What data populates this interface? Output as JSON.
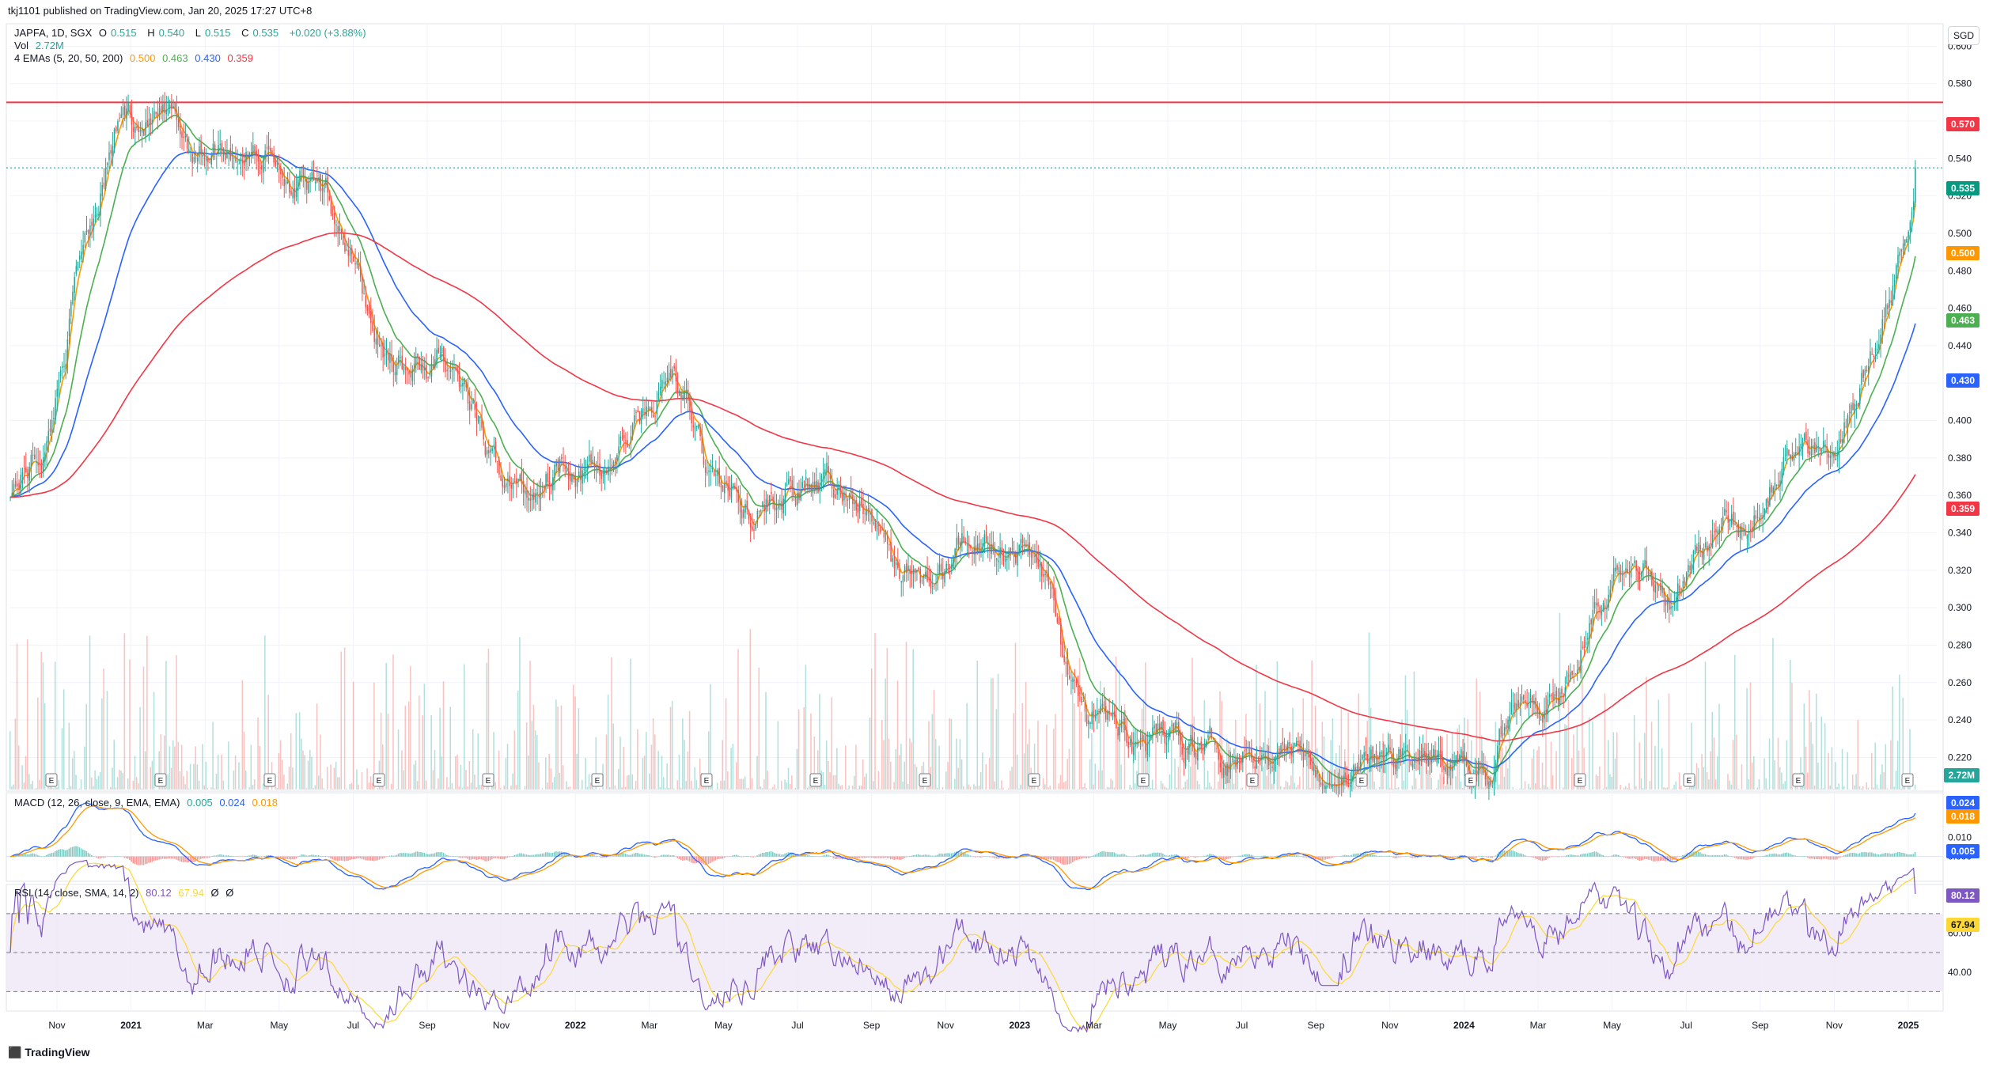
{
  "header": {
    "publisher_line": "tkj1101 published on TradingView.com, Jan 20, 2025 17:27 UTC+8"
  },
  "legend": {
    "symbol": "JAPFA, 1D, SGX",
    "ohlc": [
      {
        "label": "O",
        "value": "0.515"
      },
      {
        "label": "H",
        "value": "0.540"
      },
      {
        "label": "L",
        "value": "0.515"
      },
      {
        "label": "C",
        "value": "0.535"
      }
    ],
    "change": "+0.020 (+3.88%)",
    "vol_label": "Vol",
    "vol_value": "2.72M",
    "ema_label": "4 EMAs (5, 20, 50, 200)",
    "ema_values": [
      "0.500",
      "0.463",
      "0.430",
      "0.359"
    ],
    "macd_label": "MACD (12, 26, close, 9, EMA, EMA)",
    "macd_values": [
      "0.005",
      "0.024",
      "0.018"
    ],
    "rsi_label": "RSI (14, close, SMA, 14, 2)",
    "rsi_values": [
      "80.12",
      "67.94"
    ],
    "rsi_extra": [
      "Ø",
      "Ø"
    ]
  },
  "currency": "SGD",
  "price_badges": {
    "resistance": "0.570",
    "close": "0.535",
    "ema5": "0.500",
    "ema20": "0.463",
    "ema50": "0.430",
    "ema200": "0.359",
    "vol": "2.72M",
    "macd_line": "0.024",
    "signal_line": "0.018",
    "histogram": "0.005",
    "rsi": "80.12",
    "rsi_ma": "67.94"
  },
  "colors": {
    "up": "#26a69a",
    "down": "#ef5350",
    "ema5": "#ff9800",
    "ema20": "#4caf50",
    "ema50": "#2962ff",
    "ema200": "#f23645",
    "resistance": "#f23645",
    "macd": "#2962ff",
    "signal": "#ff9800",
    "rsi": "#7e57c2",
    "rsi_ma": "#fdd835",
    "rsi_band": "#ede7f6"
  },
  "footer": {
    "brand": "TradingView",
    "icon": "tradingview-logo-icon"
  },
  "chart_data": [
    {
      "type": "line",
      "title": "JAPFA, 1D, SGX",
      "series_type": "candlestick",
      "y_axis_ticks": [
        "0.600",
        "0.580",
        "0.560",
        "0.540",
        "0.520",
        "0.500",
        "0.480",
        "0.460",
        "0.440",
        "0.420",
        "0.400",
        "0.380",
        "0.360",
        "0.340",
        "0.320",
        "0.300",
        "0.280",
        "0.260",
        "0.240",
        "0.220"
      ],
      "ylim": [
        0.202,
        0.612
      ],
      "x_tick_labels": [
        "Nov",
        "2021",
        "Mar",
        "May",
        "Jul",
        "Sep",
        "Nov",
        "2022",
        "Mar",
        "May",
        "Jul",
        "Sep",
        "Nov",
        "2023",
        "Mar",
        "May",
        "Jul",
        "Sep",
        "Nov",
        "2024",
        "Mar",
        "May",
        "Jul",
        "Sep",
        "Nov",
        "2025"
      ],
      "horizontal_line": 0.57,
      "earnings_markers": 18,
      "price_path": [
        {
          "x": "2020-10-01",
          "y": 0.365
        },
        {
          "x": "2020-11-01",
          "y": 0.39
        },
        {
          "x": "2020-12-01",
          "y": 0.5
        },
        {
          "x": "2021-01-01",
          "y": 0.565
        },
        {
          "x": "2021-02-01",
          "y": 0.56
        },
        {
          "x": "2021-03-01",
          "y": 0.545
        },
        {
          "x": "2021-04-01",
          "y": 0.548
        },
        {
          "x": "2021-05-01",
          "y": 0.545
        },
        {
          "x": "2021-06-01",
          "y": 0.525
        },
        {
          "x": "2021-07-01",
          "y": 0.505
        },
        {
          "x": "2021-08-01",
          "y": 0.44
        },
        {
          "x": "2021-09-01",
          "y": 0.425
        },
        {
          "x": "2021-10-01",
          "y": 0.43
        },
        {
          "x": "2021-11-01",
          "y": 0.375
        },
        {
          "x": "2021-12-01",
          "y": 0.36
        },
        {
          "x": "2022-01-01",
          "y": 0.385
        },
        {
          "x": "2022-02-01",
          "y": 0.37
        },
        {
          "x": "2022-03-01",
          "y": 0.395
        },
        {
          "x": "2022-04-01",
          "y": 0.425
        },
        {
          "x": "2022-05-01",
          "y": 0.37
        },
        {
          "x": "2022-06-01",
          "y": 0.355
        },
        {
          "x": "2022-07-01",
          "y": 0.36
        },
        {
          "x": "2022-08-01",
          "y": 0.36
        },
        {
          "x": "2022-09-01",
          "y": 0.36
        },
        {
          "x": "2022-10-01",
          "y": 0.32
        },
        {
          "x": "2022-11-01",
          "y": 0.31
        },
        {
          "x": "2022-12-01",
          "y": 0.335
        },
        {
          "x": "2023-01-01",
          "y": 0.34
        },
        {
          "x": "2023-02-01",
          "y": 0.32
        },
        {
          "x": "2023-03-01",
          "y": 0.24
        },
        {
          "x": "2023-04-01",
          "y": 0.235
        },
        {
          "x": "2023-05-01",
          "y": 0.225
        },
        {
          "x": "2023-06-01",
          "y": 0.23
        },
        {
          "x": "2023-07-01",
          "y": 0.225
        },
        {
          "x": "2023-08-01",
          "y": 0.23
        },
        {
          "x": "2023-09-01",
          "y": 0.225
        },
        {
          "x": "2023-10-01",
          "y": 0.21
        },
        {
          "x": "2023-11-01",
          "y": 0.215
        },
        {
          "x": "2023-12-01",
          "y": 0.225
        },
        {
          "x": "2024-01-01",
          "y": 0.215
        },
        {
          "x": "2024-02-01",
          "y": 0.212
        },
        {
          "x": "2024-03-01",
          "y": 0.265
        },
        {
          "x": "2024-04-01",
          "y": 0.255
        },
        {
          "x": "2024-05-01",
          "y": 0.315
        },
        {
          "x": "2024-06-01",
          "y": 0.325
        },
        {
          "x": "2024-07-01",
          "y": 0.31
        },
        {
          "x": "2024-08-01",
          "y": 0.335
        },
        {
          "x": "2024-09-01",
          "y": 0.345
        },
        {
          "x": "2024-10-01",
          "y": 0.385
        },
        {
          "x": "2024-11-01",
          "y": 0.38
        },
        {
          "x": "2024-12-01",
          "y": 0.415
        },
        {
          "x": "2025-01-01",
          "y": 0.465
        },
        {
          "x": "2025-01-20",
          "y": 0.535
        }
      ],
      "series": [
        {
          "name": "EMA 5",
          "last": 0.5
        },
        {
          "name": "EMA 20",
          "last": 0.463
        },
        {
          "name": "EMA 50",
          "last": 0.43
        },
        {
          "name": "EMA 200",
          "last": 0.359
        }
      ]
    },
    {
      "type": "bar",
      "title": "Vol",
      "last": "2.72M"
    },
    {
      "type": "line",
      "title": "MACD (12, 26, close, 9, EMA, EMA)",
      "y_axis_ticks": [
        "0.010",
        "0.000"
      ],
      "series": [
        {
          "name": "Histogram",
          "last": 0.005
        },
        {
          "name": "MACD",
          "last": 0.024
        },
        {
          "name": "Signal",
          "last": 0.018
        }
      ]
    },
    {
      "type": "line",
      "title": "RSI (14, close, SMA, 14, 2)",
      "y_axis_ticks": [
        "60.00",
        "40.00"
      ],
      "ylim": [
        20,
        85
      ],
      "bands": [
        30,
        50,
        70
      ],
      "series": [
        {
          "name": "RSI",
          "last": 80.12
        },
        {
          "name": "RSI-based MA",
          "last": 67.94
        }
      ]
    }
  ]
}
